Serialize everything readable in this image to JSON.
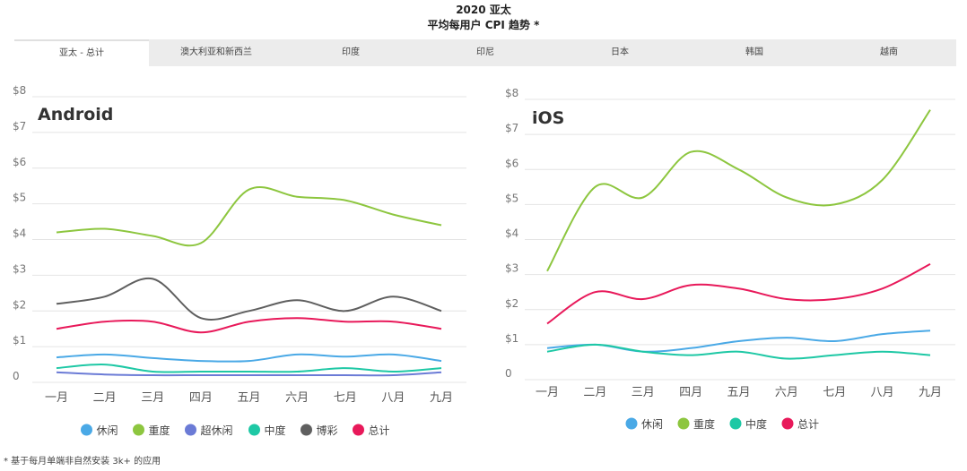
{
  "header": {
    "title": "2020 亚太",
    "subtitle": "平均每用户 CPI 趋势 *"
  },
  "tabs": [
    {
      "label": "亚太 - 总计",
      "active": true
    },
    {
      "label": "澳大利亚和新西兰",
      "active": false
    },
    {
      "label": "印度",
      "active": false
    },
    {
      "label": "印尼",
      "active": false
    },
    {
      "label": "日本",
      "active": false
    },
    {
      "label": "韩国",
      "active": false
    },
    {
      "label": "越南",
      "active": false
    }
  ],
  "footnote": "* 基于每月单端非自然安装 3k+ 的应用",
  "chart_data": [
    {
      "type": "line",
      "title": "Android",
      "categories": [
        "一月",
        "二月",
        "三月",
        "四月",
        "五月",
        "六月",
        "七月",
        "八月",
        "九月"
      ],
      "y_ticks": [
        "0",
        "$1",
        "$2",
        "$3",
        "$4",
        "$5",
        "$6",
        "$7",
        "$8"
      ],
      "ylim": [
        0,
        8
      ],
      "grid": true,
      "legend_position": "bottom",
      "series": [
        {
          "name": "休闲",
          "color": "#4aa9e6",
          "values": [
            0.7,
            0.78,
            0.68,
            0.6,
            0.6,
            0.78,
            0.72,
            0.78,
            0.6
          ]
        },
        {
          "name": "重度",
          "color": "#8dc63f",
          "values": [
            4.2,
            4.3,
            4.1,
            3.9,
            5.4,
            5.2,
            5.1,
            4.7,
            4.4
          ]
        },
        {
          "name": "超休闲",
          "color": "#6b7bd6",
          "values": [
            0.28,
            0.22,
            0.2,
            0.2,
            0.2,
            0.2,
            0.2,
            0.2,
            0.28
          ]
        },
        {
          "name": "中度",
          "color": "#1ec8a5",
          "values": [
            0.4,
            0.5,
            0.3,
            0.3,
            0.3,
            0.3,
            0.4,
            0.3,
            0.4
          ]
        },
        {
          "name": "博彩",
          "color": "#5f5f5f",
          "values": [
            2.2,
            2.4,
            2.9,
            1.8,
            2.0,
            2.3,
            2.0,
            2.4,
            2.0
          ]
        },
        {
          "name": "总计",
          "color": "#e8195a",
          "values": [
            1.5,
            1.7,
            1.7,
            1.4,
            1.7,
            1.8,
            1.7,
            1.7,
            1.5
          ]
        }
      ]
    },
    {
      "type": "line",
      "title": "iOS",
      "categories": [
        "一月",
        "二月",
        "三月",
        "四月",
        "五月",
        "六月",
        "七月",
        "八月",
        "九月"
      ],
      "y_ticks": [
        "0",
        "$1",
        "$2",
        "$3",
        "$4",
        "$5",
        "$6",
        "$7",
        "$8"
      ],
      "ylim": [
        0,
        8
      ],
      "grid": true,
      "legend_position": "bottom",
      "series": [
        {
          "name": "休闲",
          "color": "#4aa9e6",
          "values": [
            0.9,
            1.0,
            0.8,
            0.9,
            1.1,
            1.2,
            1.1,
            1.3,
            1.4
          ]
        },
        {
          "name": "重度",
          "color": "#8dc63f",
          "values": [
            3.1,
            5.5,
            5.2,
            6.5,
            6.0,
            5.2,
            5.0,
            5.7,
            7.7
          ]
        },
        {
          "name": "中度",
          "color": "#1ec8a5",
          "values": [
            0.8,
            1.0,
            0.8,
            0.7,
            0.8,
            0.6,
            0.7,
            0.8,
            0.7
          ]
        },
        {
          "name": "总计",
          "color": "#e8195a",
          "values": [
            1.6,
            2.5,
            2.3,
            2.7,
            2.6,
            2.3,
            2.3,
            2.6,
            3.3
          ]
        }
      ]
    }
  ]
}
